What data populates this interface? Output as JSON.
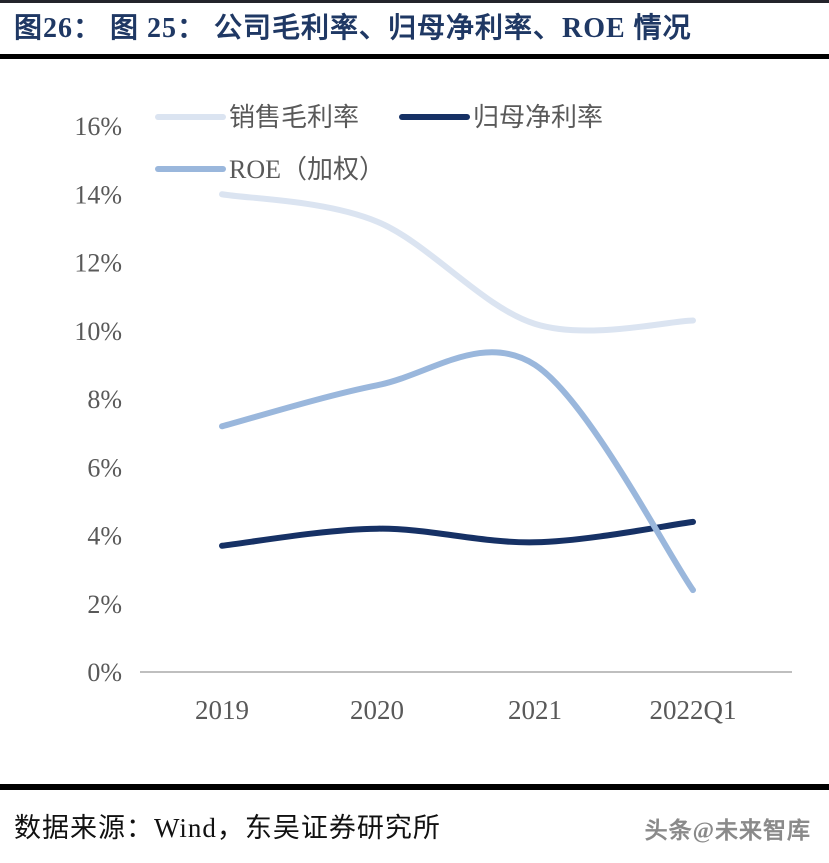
{
  "header": {
    "title": "图26： 图 25： 公司毛利率、归母净利率、ROE 情况"
  },
  "footer": {
    "source": "数据来源：Wind，东吴证券研究所",
    "watermark": "头条@未来智库"
  },
  "colors": {
    "title_navy": "#1f3864",
    "axis_line": "#bfbfbf",
    "tick_text": "#595959",
    "rule_black": "#000000"
  },
  "chart_data": {
    "type": "line",
    "title": "公司毛利率、归母净利率、ROE 情况",
    "categories": [
      "2019",
      "2020",
      "2021",
      "2022Q1"
    ],
    "series": [
      {
        "name": "销售毛利率",
        "color": "#dbe4f1",
        "values": [
          14.0,
          13.2,
          10.2,
          10.3
        ]
      },
      {
        "name": "归母净利率",
        "color": "#163165",
        "values": [
          3.7,
          4.2,
          3.8,
          4.4
        ]
      },
      {
        "name": "ROE（加权）",
        "color": "#9ab7dc",
        "values": [
          7.2,
          8.4,
          9.0,
          2.4
        ]
      }
    ],
    "ytick_labels": [
      "16%",
      "14%",
      "12%",
      "10%",
      "8%",
      "6%",
      "4%",
      "2%",
      "0%"
    ],
    "ylim": [
      0,
      16
    ],
    "ytick_step": 2,
    "xlabel": "",
    "ylabel": "",
    "grid": false,
    "smooth": true,
    "legend_position": "top-left"
  }
}
